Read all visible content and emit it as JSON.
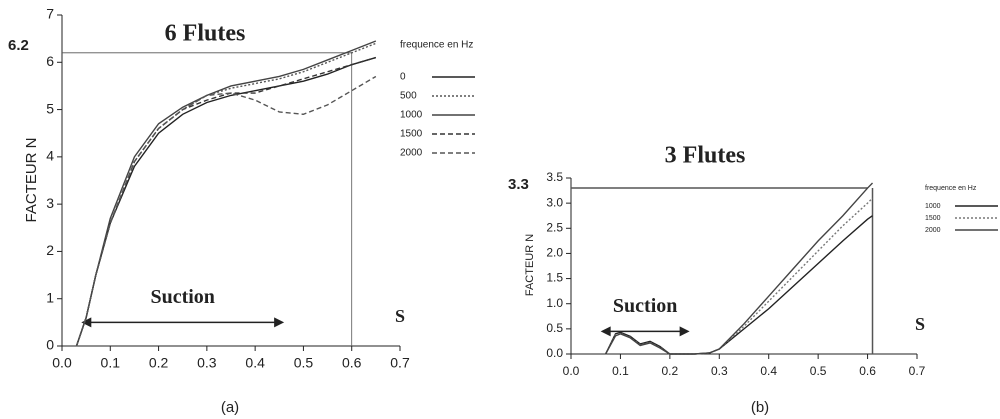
{
  "chart_data": [
    {
      "type": "line",
      "title": "6 Flutes",
      "ylabel": "FACTEUR N",
      "caption": "(a)",
      "legend_title": "frequence en Hz",
      "x": [
        0.03,
        0.05,
        0.07,
        0.1,
        0.15,
        0.2,
        0.25,
        0.3,
        0.35,
        0.4,
        0.45,
        0.5,
        0.55,
        0.6,
        0.65
      ],
      "series": [
        {
          "name": "0",
          "color": "#222",
          "style": "solid",
          "values": [
            0,
            0.6,
            1.5,
            2.6,
            3.8,
            4.5,
            4.9,
            5.15,
            5.3,
            5.4,
            5.5,
            5.6,
            5.75,
            5.95,
            6.1
          ]
        },
        {
          "name": "500",
          "color": "#555",
          "style": "dotted",
          "values": [
            0,
            0.6,
            1.5,
            2.6,
            3.9,
            4.6,
            5.0,
            5.3,
            5.45,
            5.55,
            5.65,
            5.8,
            6.0,
            6.2,
            6.4
          ]
        },
        {
          "name": "1000",
          "color": "#444",
          "style": "solid",
          "values": [
            0,
            0.6,
            1.5,
            2.7,
            4.0,
            4.7,
            5.05,
            5.3,
            5.5,
            5.6,
            5.7,
            5.85,
            6.05,
            6.25,
            6.45
          ]
        },
        {
          "name": "1500",
          "color": "#333",
          "style": "dashed",
          "values": [
            0,
            0.6,
            1.5,
            2.6,
            3.9,
            4.6,
            5.0,
            5.2,
            5.35,
            5.35,
            5.5,
            5.65,
            5.8,
            5.95,
            6.1
          ]
        },
        {
          "name": "2000",
          "color": "#555",
          "style": "dashed",
          "values": [
            0,
            0.6,
            1.5,
            2.6,
            3.9,
            4.6,
            5.0,
            5.3,
            5.35,
            5.2,
            4.95,
            4.9,
            5.1,
            5.4,
            5.7
          ]
        }
      ],
      "xlim": [
        0,
        0.7
      ],
      "ylim": [
        0,
        7
      ],
      "xticks": [
        {
          "value": 0,
          "label": "0.0"
        },
        0.1,
        0.2,
        0.3,
        0.4,
        0.5,
        0.6,
        0.7
      ],
      "yticks": [
        0,
        1,
        2,
        3,
        4,
        5,
        6,
        7
      ],
      "hline": {
        "value": 6.2,
        "label": "6.2"
      },
      "vline": 0.6,
      "arrow": {
        "label": "Suction",
        "from": 0.04,
        "to": 0.46,
        "y": 0.5
      },
      "x_marker": "S"
    },
    {
      "type": "line",
      "title": "3 Flutes",
      "ylabel": "FACTEUR N",
      "caption": "(b)",
      "legend_title": "frequence en Hz",
      "x": [
        0.07,
        0.09,
        0.1,
        0.12,
        0.14,
        0.16,
        0.18,
        0.2,
        0.25,
        0.28,
        0.3,
        0.35,
        0.4,
        0.45,
        0.5,
        0.55,
        0.6,
        0.61
      ],
      "series": [
        {
          "name": "1000",
          "color": "#222",
          "style": "solid",
          "values": [
            0,
            0.4,
            0.43,
            0.35,
            0.2,
            0.25,
            0.15,
            0,
            0,
            0.02,
            0.1,
            0.5,
            0.9,
            1.35,
            1.8,
            2.25,
            2.68,
            2.75
          ]
        },
        {
          "name": "1500",
          "color": "#777",
          "style": "dotted",
          "values": [
            0,
            0.38,
            0.41,
            0.33,
            0.18,
            0.23,
            0.13,
            0,
            0,
            0.02,
            0.1,
            0.55,
            1.05,
            1.55,
            2.05,
            2.55,
            3.0,
            3.1
          ]
        },
        {
          "name": "2000",
          "color": "#444",
          "style": "solid",
          "values": [
            0,
            0.36,
            0.4,
            0.32,
            0.17,
            0.22,
            0.12,
            0,
            0,
            0.02,
            0.1,
            0.6,
            1.15,
            1.7,
            2.25,
            2.75,
            3.3,
            3.4
          ]
        }
      ],
      "xlim": [
        0,
        0.7
      ],
      "ylim": [
        0,
        3.5
      ],
      "xticks": [
        {
          "value": 0,
          "label": "0.0"
        },
        0.1,
        0.2,
        0.3,
        0.4,
        0.5,
        0.6,
        0.7
      ],
      "yticks": [
        {
          "value": 0,
          "label": "0.0"
        },
        0.5,
        {
          "value": 1,
          "label": "1.0"
        },
        1.5,
        {
          "value": 2,
          "label": "2.0"
        },
        2.5,
        {
          "value": 3,
          "label": "3.0"
        },
        3.5
      ],
      "hline": {
        "value": 3.3,
        "label": "3.3"
      },
      "vline": 0.61,
      "arrow": {
        "label": "Suction",
        "from": 0.06,
        "to": 0.24,
        "y": 0.45
      },
      "x_marker": "S"
    }
  ]
}
